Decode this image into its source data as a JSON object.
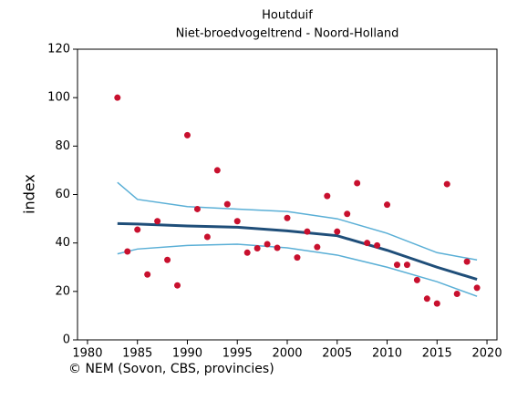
{
  "chart_data": {
    "type": "scatter",
    "title": "Houtduif",
    "subtitle": "Niet-broedvogeltrend - Noord-Holland",
    "ylabel": "index",
    "footer": "© NEM (Sovon, CBS, provincies)",
    "xlim": [
      1979,
      2021
    ],
    "ylim": [
      0,
      120
    ],
    "xticks": [
      1980,
      1985,
      1990,
      1995,
      2000,
      2005,
      2010,
      2015,
      2020
    ],
    "yticks": [
      0,
      20,
      40,
      60,
      80,
      100,
      120
    ],
    "series": [
      {
        "type": "scatter",
        "color": "#c8102e",
        "x": [
          1983,
          1984,
          1985,
          1986,
          1987,
          1988,
          1989,
          1990,
          1991,
          1992,
          1993,
          1994,
          1995,
          1996,
          1997,
          1998,
          1999,
          2000,
          2001,
          2002,
          2003,
          2004,
          2005,
          2006,
          2007,
          2008,
          2009,
          2010,
          2011,
          2012,
          2013,
          2014,
          2015,
          2016,
          2017,
          2018,
          2019
        ],
        "values": [
          100,
          36.5,
          45.5,
          27,
          49,
          33,
          22.5,
          84.5,
          54,
          42.5,
          70,
          56,
          49,
          36,
          37.8,
          39.5,
          38,
          50.3,
          34,
          44.7,
          38.3,
          59.4,
          44.7,
          52,
          64.7,
          40,
          39,
          55.8,
          31,
          31,
          24.7,
          17,
          15,
          64.3,
          19,
          32.3,
          21.5
        ]
      },
      {
        "type": "line",
        "color": "#5aafd6",
        "linewidth": 1.5,
        "x": [
          1983,
          1985,
          1990,
          1995,
          2000,
          2005,
          2010,
          2015,
          2019
        ],
        "values": [
          65,
          58,
          55,
          54,
          53,
          50,
          44,
          36,
          33
        ]
      },
      {
        "type": "line",
        "color": "#5aafd6",
        "linewidth": 1.5,
        "x": [
          1983,
          1985,
          1990,
          1995,
          2000,
          2005,
          2010,
          2015,
          2019
        ],
        "values": [
          35.5,
          37.5,
          39,
          39.5,
          38,
          35,
          30,
          24,
          18
        ]
      },
      {
        "type": "line",
        "color": "#1f4e79",
        "linewidth": 3,
        "x": [
          1983,
          1985,
          1990,
          1995,
          2000,
          2005,
          2010,
          2015,
          2019
        ],
        "values": [
          48,
          47.8,
          47,
          46.5,
          45,
          43,
          37,
          30,
          25
        ]
      }
    ]
  }
}
